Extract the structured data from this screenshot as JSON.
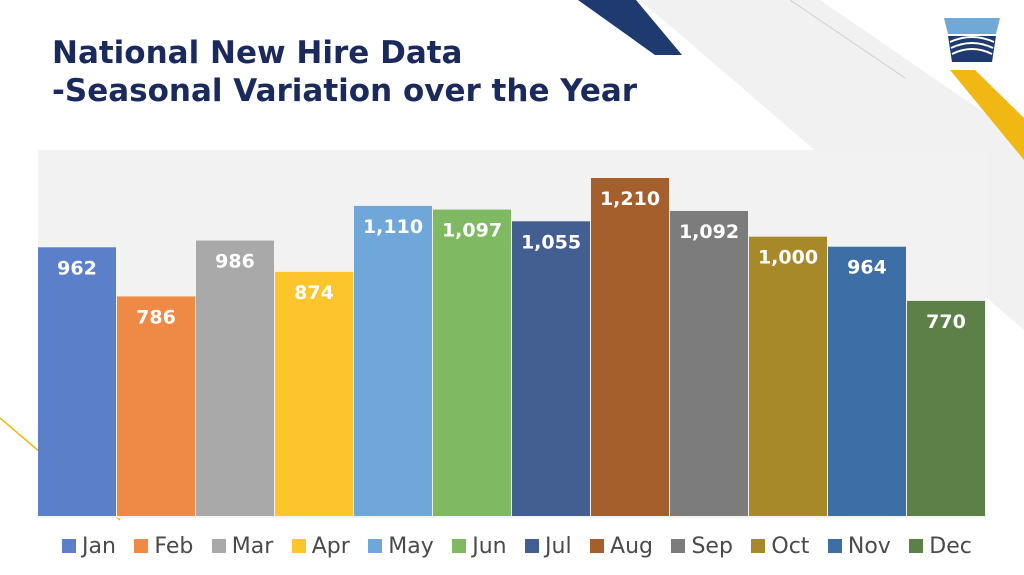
{
  "title": {
    "line1": "National New Hire Data",
    "line2": "-Seasonal Variation over the Year"
  },
  "colors": {
    "title": "#1b2a5c",
    "accent_navy": "#1e3a6e",
    "accent_gold": "#f1b814",
    "panel": "#f2f2f2"
  },
  "chart_data": {
    "type": "bar",
    "title": "",
    "xlabel": "",
    "ylabel": "",
    "ylim": [
      0,
      1250
    ],
    "grid": false,
    "legend_position": "bottom",
    "categories": [
      "Jan",
      "Feb",
      "Mar",
      "Apr",
      "May",
      "Jun",
      "Jul",
      "Aug",
      "Sep",
      "Oct",
      "Nov",
      "Dec"
    ],
    "series": [
      {
        "name": "Jan",
        "value": 962,
        "label": "962",
        "color": "#5b80c9"
      },
      {
        "name": "Feb",
        "value": 786,
        "label": "786",
        "color": "#ee8a45"
      },
      {
        "name": "Mar",
        "value": 986,
        "label": "986",
        "color": "#a9a9a9"
      },
      {
        "name": "Apr",
        "value": 874,
        "label": "874",
        "color": "#fbc52b"
      },
      {
        "name": "May",
        "value": 1110,
        "label": "1,110",
        "color": "#6fa7da"
      },
      {
        "name": "Jun",
        "value": 1097,
        "label": "1,097",
        "color": "#7fb961"
      },
      {
        "name": "Jul",
        "value": 1055,
        "label": "1,055",
        "color": "#435e91"
      },
      {
        "name": "Aug",
        "value": 1210,
        "label": "1,210",
        "color": "#a55f2d"
      },
      {
        "name": "Sep",
        "value": 1092,
        "label": "1,092",
        "color": "#7c7c7c"
      },
      {
        "name": "Oct",
        "value": 1000,
        "label": "1,000",
        "color": "#a8892a"
      },
      {
        "name": "Nov",
        "value": 964,
        "label": "964",
        "color": "#3d6fa6"
      },
      {
        "name": "Dec",
        "value": 770,
        "label": "770",
        "color": "#5c8048"
      }
    ]
  }
}
